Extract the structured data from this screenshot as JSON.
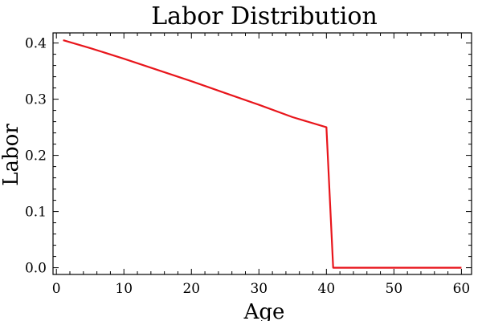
{
  "chart_data": {
    "type": "line",
    "title": "Labor Distribution",
    "xlabel": "Age",
    "ylabel": "Labor",
    "xlim": [
      -0.5,
      61.5
    ],
    "ylim": [
      -0.012,
      0.418
    ],
    "x_ticks": [
      0,
      10,
      20,
      30,
      40,
      50,
      60
    ],
    "y_ticks": [
      0.0,
      0.1,
      0.2,
      0.3,
      0.4
    ],
    "x_minor_ticks": [
      2,
      4,
      6,
      8,
      12,
      14,
      16,
      18,
      22,
      24,
      26,
      28,
      32,
      34,
      36,
      38,
      42,
      44,
      46,
      48,
      52,
      54,
      56,
      58
    ],
    "y_minor_ticks": [
      0.02,
      0.04,
      0.06,
      0.08,
      0.12,
      0.14,
      0.16,
      0.18,
      0.22,
      0.24,
      0.26,
      0.28,
      0.32,
      0.34,
      0.36,
      0.38
    ],
    "grid": false,
    "series": [
      {
        "color": "#e8151b",
        "x": [
          1,
          5,
          10,
          15,
          20,
          25,
          30,
          35,
          40,
          41,
          45,
          50,
          55,
          60
        ],
        "values": [
          0.405,
          0.391,
          0.372,
          0.352,
          0.332,
          0.311,
          0.29,
          0.268,
          0.25,
          0.0,
          0.0,
          0.0,
          0.0,
          0.0
        ]
      }
    ]
  }
}
